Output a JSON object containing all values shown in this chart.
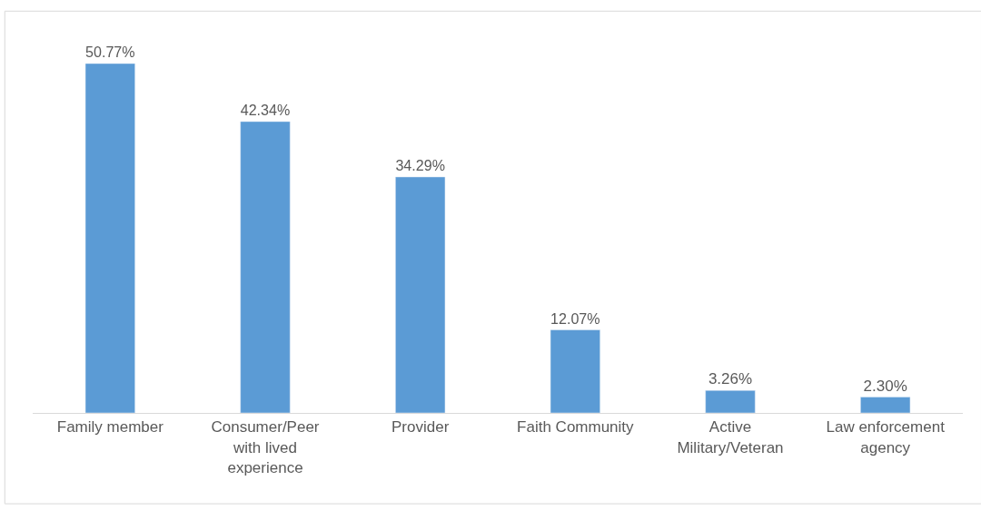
{
  "chart_data": {
    "type": "bar",
    "categories": [
      "Family member",
      "Consumer/Peer with lived experience",
      "Provider",
      "Faith Community",
      "Active Military/Veteran",
      "Law enforcement agency"
    ],
    "values": [
      50.77,
      42.34,
      34.29,
      12.07,
      3.26,
      2.3
    ],
    "value_labels": [
      "50.77%",
      "42.34%",
      "34.29%",
      "12.07%",
      "3.26%",
      "2.30%"
    ],
    "color": "#5b9bd5",
    "legend": false
  }
}
